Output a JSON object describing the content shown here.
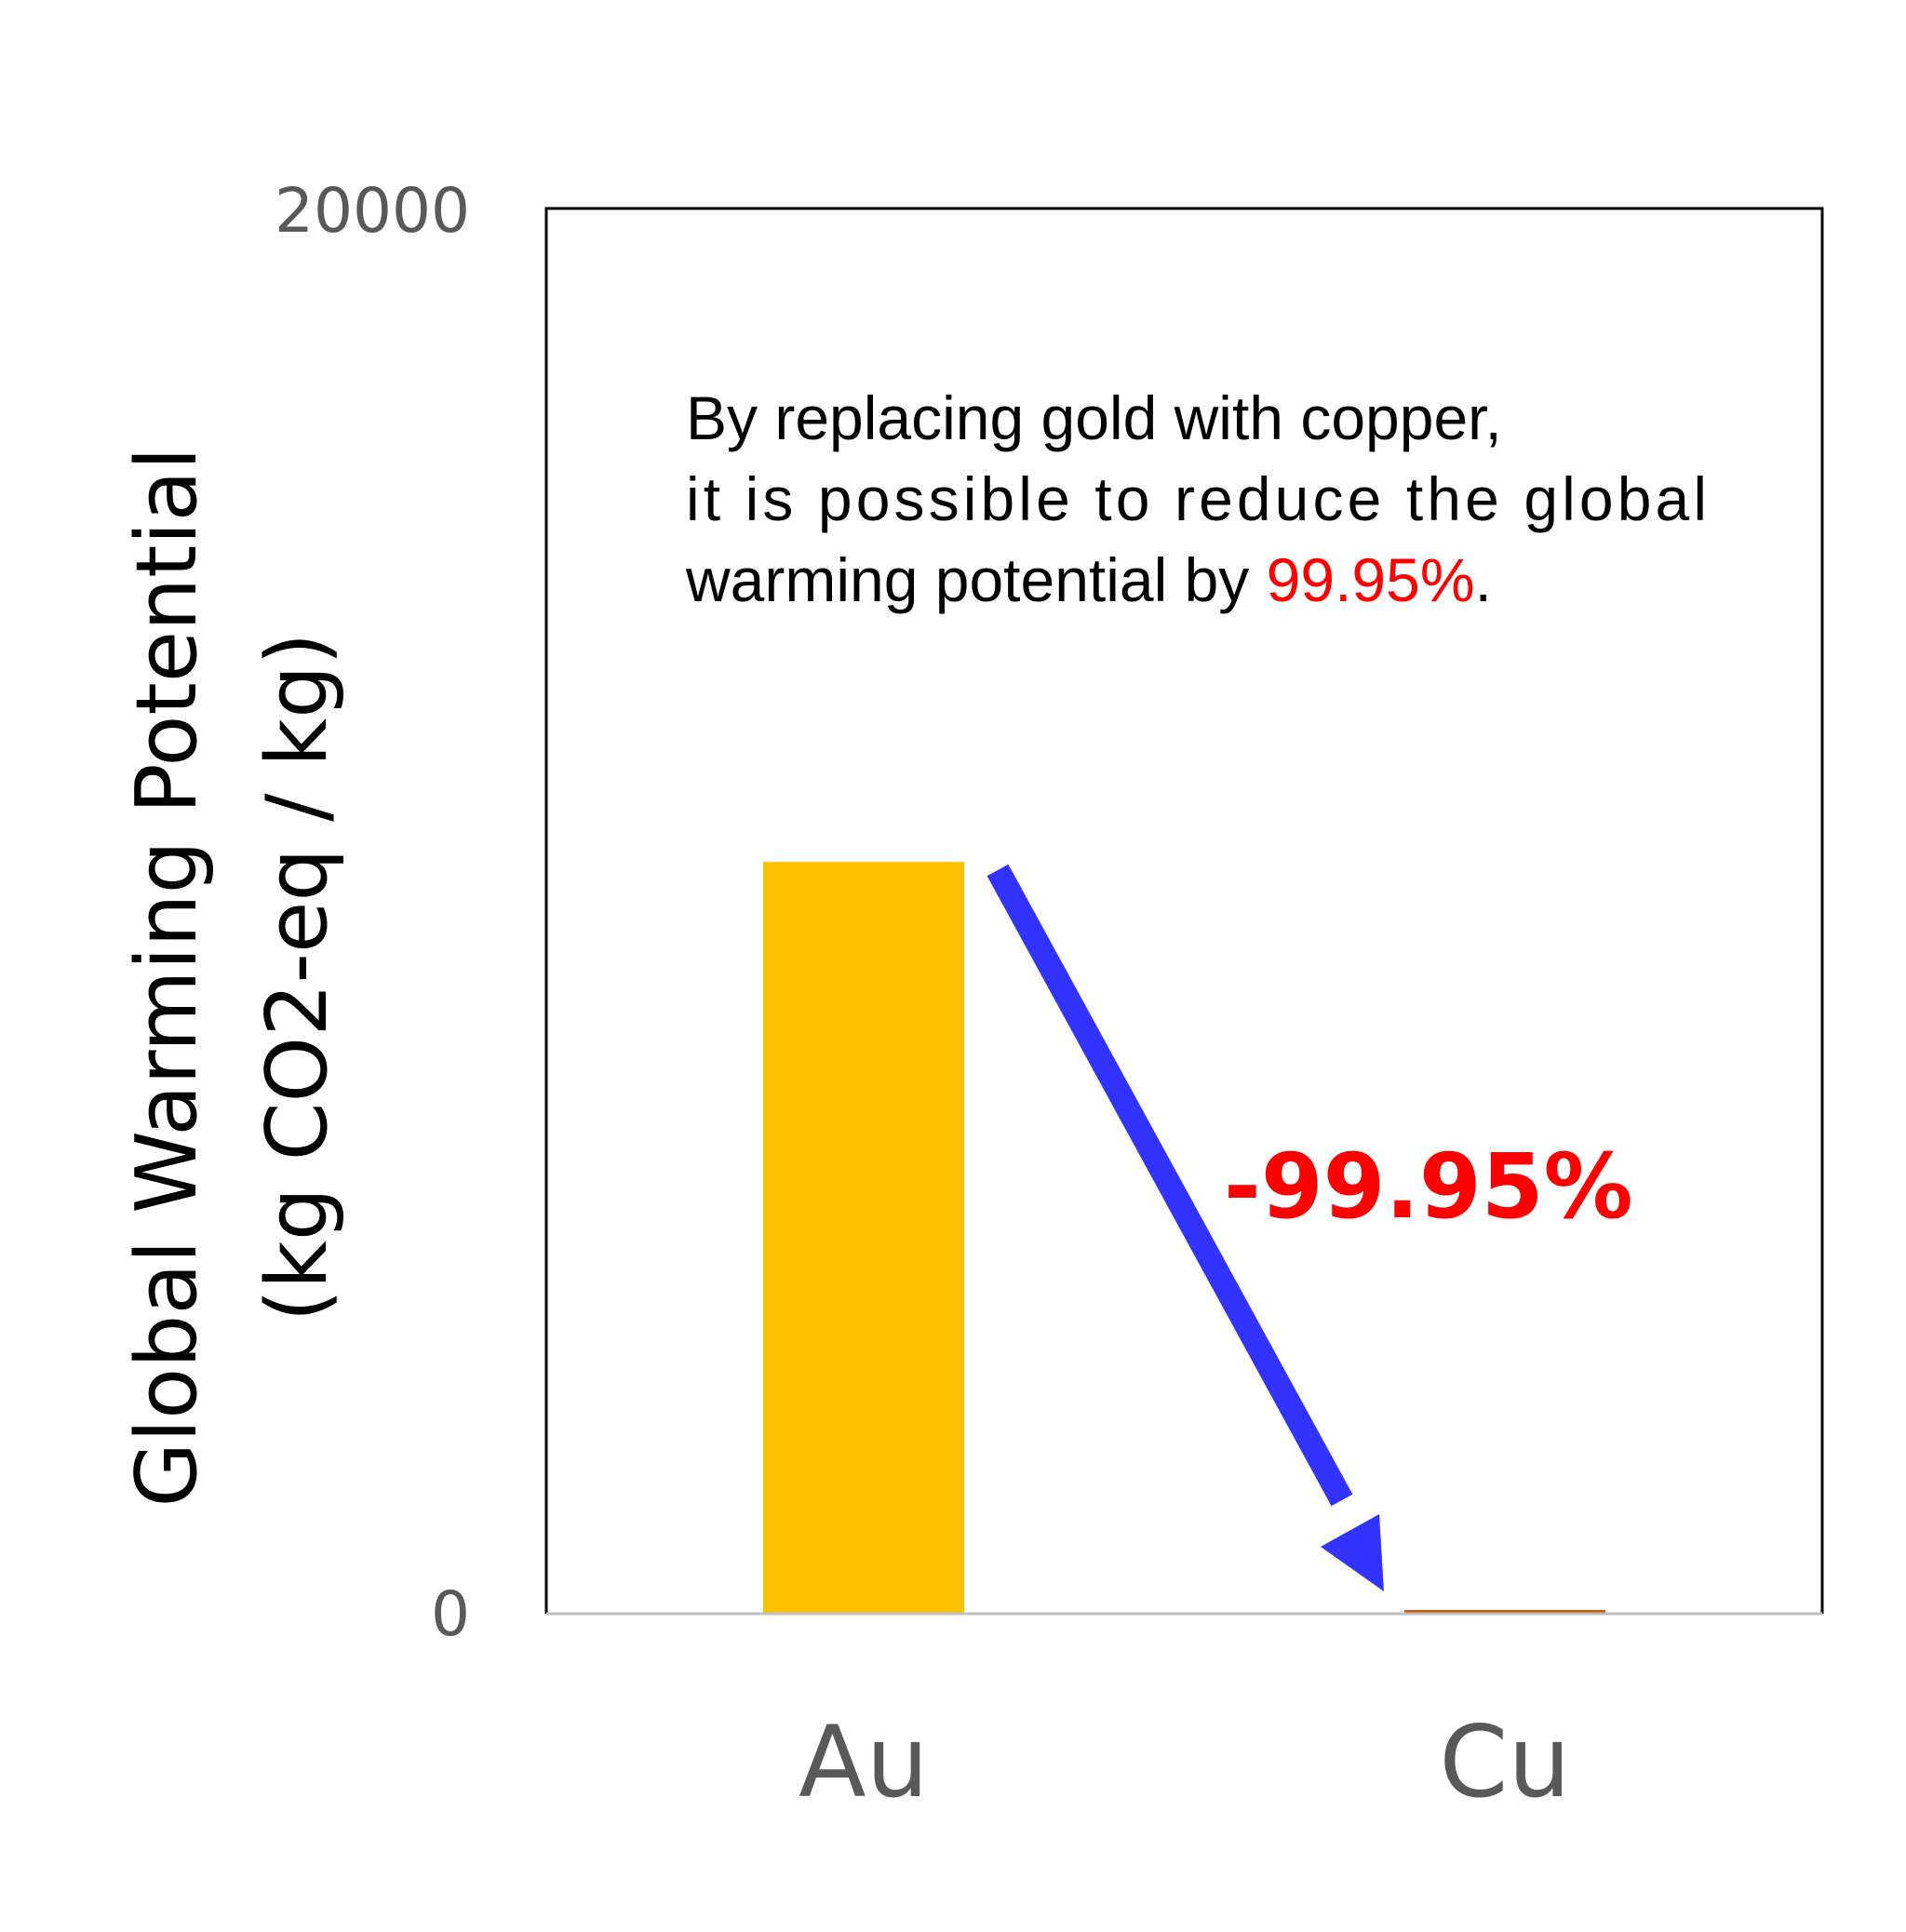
{
  "chart_data": {
    "type": "bar",
    "categories": [
      "Au",
      "Cu"
    ],
    "values": [
      10700,
      6
    ],
    "ylabel_line1": "Global Warming Potential",
    "ylabel_line2": "(kg CO2-eq / kg)",
    "xlabel": "",
    "title": "",
    "ylim": [
      0,
      20000
    ],
    "yticks": [
      "0",
      "20000"
    ],
    "grid": false,
    "legend": "none"
  },
  "annotation": {
    "line1": "By replacing gold with copper,",
    "line2": "it is possible to reduce the global",
    "line3_before": "warming potential by ",
    "line3_highlight": "99.95%",
    "line3_after": ".",
    "reduction_label": "-99.95%"
  },
  "colors": {
    "au_bar": "#FFC000",
    "cu_bar": "#C55A11",
    "arrow": "#3333FF",
    "highlight": "#FF0000",
    "tick_text": "#595959",
    "axis_line": "#000000",
    "baseline": "#BFBFBF"
  }
}
